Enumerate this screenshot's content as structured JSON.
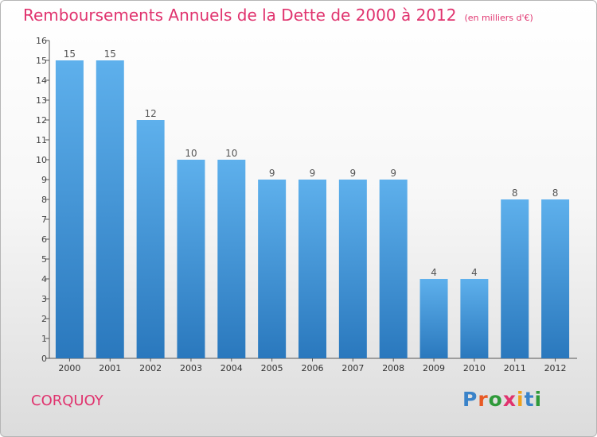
{
  "title": "Remboursements Annuels de la Dette de 2000 à 2012",
  "subtitle": "(en milliers d'€)",
  "commune": "CORQUOY",
  "logo": [
    "P",
    "r",
    "o",
    "x",
    "i",
    "t",
    "i"
  ],
  "colors": {
    "title": "#e0336e",
    "bar_top": "#5eb0ec",
    "bar_bottom": "#2a78bd",
    "axis": "#555555"
  },
  "chart_data": {
    "type": "bar",
    "categories": [
      "2000",
      "2001",
      "2002",
      "2003",
      "2004",
      "2005",
      "2006",
      "2007",
      "2008",
      "2009",
      "2010",
      "2011",
      "2012"
    ],
    "values": [
      15,
      15,
      12,
      10,
      10,
      9,
      9,
      9,
      9,
      4,
      4,
      8,
      8
    ],
    "data_labels": [
      "15",
      "15",
      "12",
      "10",
      "10",
      "9",
      "9",
      "9",
      "9",
      "4",
      "4",
      "8",
      "8"
    ],
    "ylim": [
      0,
      16
    ],
    "yticks": [
      "0",
      "1",
      "2",
      "3",
      "4",
      "5",
      "6",
      "7",
      "8",
      "9",
      "10",
      "11",
      "12",
      "13",
      "14",
      "15",
      "16"
    ],
    "grid": false,
    "legend": "none"
  }
}
